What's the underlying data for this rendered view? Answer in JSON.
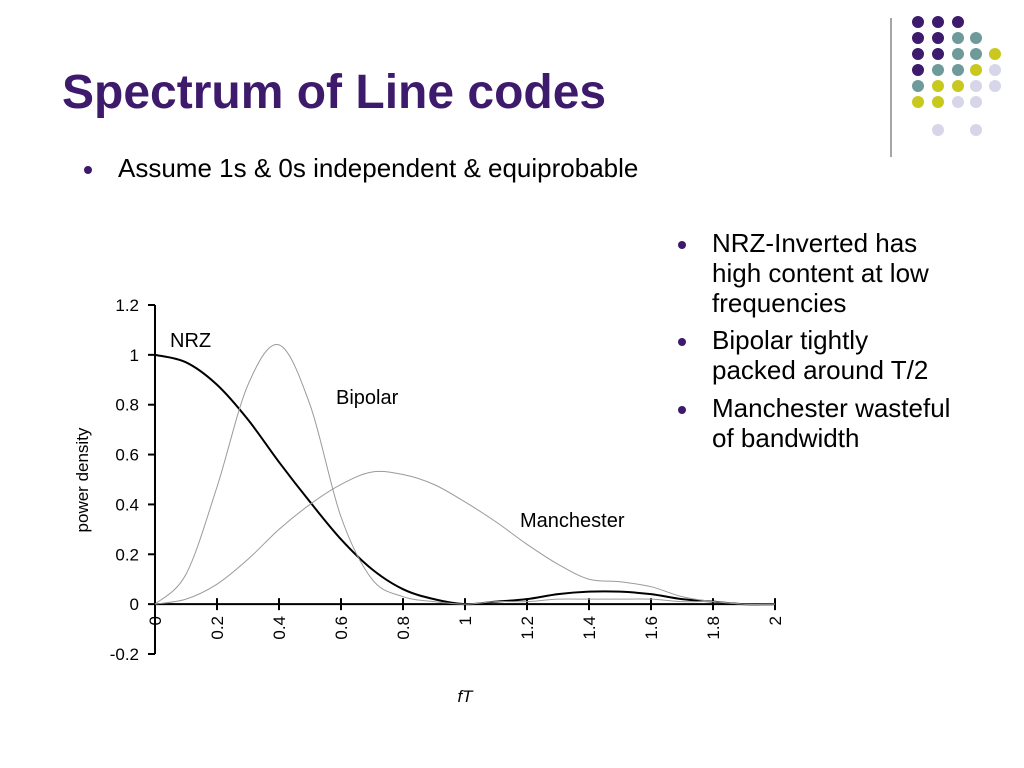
{
  "slide": {
    "title": "Spectrum of Line codes",
    "bullet": "Assume 1s & 0s independent & equiprobable",
    "notes": [
      "NRZ-Inverted has high content at low frequencies",
      "Bipolar tightly packed around T/2",
      "Manchester wasteful of bandwidth"
    ]
  },
  "chart_data": {
    "type": "line",
    "x_label": "fT",
    "y_label": "power density",
    "x": [
      0,
      0.1,
      0.2,
      0.3,
      0.4,
      0.5,
      0.6,
      0.7,
      0.8,
      0.9,
      1,
      1.1,
      1.2,
      1.3,
      1.4,
      1.5,
      1.6,
      1.7,
      1.8,
      1.9,
      2
    ],
    "series": [
      {
        "name": "NRZ",
        "color": "#000000",
        "values": [
          1,
          0.97,
          0.88,
          0.74,
          0.57,
          0.41,
          0.26,
          0.14,
          0.06,
          0.02,
          0,
          0.01,
          0.02,
          0.04,
          0.05,
          0.05,
          0.04,
          0.02,
          0.01,
          0,
          0
        ]
      },
      {
        "name": "Bipolar",
        "color": "#9a9a9a",
        "values": [
          0,
          0.12,
          0.47,
          0.88,
          1.04,
          0.8,
          0.35,
          0.1,
          0.03,
          0.01,
          0,
          0.01,
          0.01,
          0.02,
          0.02,
          0.02,
          0.02,
          0.01,
          0.01,
          0,
          0
        ]
      },
      {
        "name": "Manchester",
        "color": "#9a9a9a",
        "values": [
          0,
          0.02,
          0.08,
          0.18,
          0.3,
          0.4,
          0.48,
          0.53,
          0.52,
          0.48,
          0.41,
          0.33,
          0.24,
          0.16,
          0.1,
          0.09,
          0.07,
          0.03,
          0.01,
          0,
          0
        ]
      }
    ],
    "xlim": [
      0,
      2
    ],
    "xticks": [
      0,
      0.2,
      0.4,
      0.6,
      0.8,
      1,
      1.2,
      1.4,
      1.6,
      1.8,
      2
    ],
    "ylim": [
      -0.2,
      1.2
    ],
    "yticks": [
      -0.2,
      0,
      0.2,
      0.4,
      0.6,
      0.8,
      1,
      1.2
    ]
  }
}
